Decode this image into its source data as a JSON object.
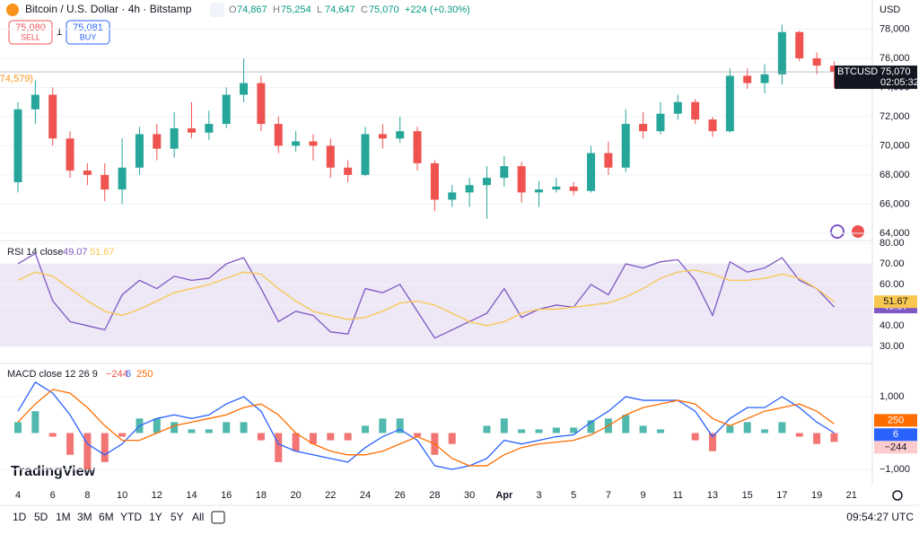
{
  "header": {
    "symbol": "Bitcoin / U.S. Dollar · 4h · Bitstamp",
    "ohlc": [
      {
        "label": "O",
        "value": "74,867"
      },
      {
        "label": "H",
        "value": "75,254"
      },
      {
        "label": "L",
        "value": "74,647"
      },
      {
        "label": "C",
        "value": "75,070"
      }
    ],
    "change": "+224 (+0.30%)"
  },
  "trade": {
    "sell_price": "75,080",
    "sell": "SELL",
    "qty": "1",
    "buy_price": "75,081",
    "buy": "BUY"
  },
  "toolbar": {
    "ranges": [
      "1D",
      "5D",
      "1M",
      "3M",
      "6M",
      "YTD",
      "1Y",
      "5Y",
      "All"
    ],
    "clock": "09:54:27 UTC"
  },
  "logo": "TradingView",
  "chart_data": [
    {
      "type": "candlestick",
      "axis_label": "USD",
      "up_color": "#26a69a",
      "down_color": "#ef5350",
      "categories": [
        "4",
        null,
        "6",
        null,
        "8",
        null,
        "10",
        null,
        "12",
        null,
        "14",
        null,
        "16",
        null,
        "18",
        null,
        "20",
        null,
        "22",
        null,
        "24",
        null,
        "26",
        null,
        "28",
        null,
        "30",
        null,
        "Apr",
        null,
        "3",
        null,
        "5",
        null,
        "7",
        null,
        "9",
        null,
        "11",
        null,
        "13",
        null,
        "15",
        null,
        "17",
        null,
        "19",
        null,
        "21"
      ],
      "open": [
        67500,
        72500,
        73500,
        70500,
        68300,
        68000,
        67000,
        68500,
        70800,
        69800,
        71200,
        70900,
        71500,
        73500,
        74300,
        71500,
        70000,
        70300,
        70000,
        68500,
        68000,
        70800,
        70500,
        71000,
        68800,
        66300,
        66800,
        67300,
        67800,
        68600,
        66800,
        67000,
        67200,
        66900,
        69500,
        68500,
        71500,
        71000,
        72200,
        73000,
        71800,
        71000,
        74800,
        74300,
        74900,
        77800,
        76000,
        75500,
        null
      ],
      "high": [
        73000,
        74500,
        74000,
        71000,
        68800,
        68800,
        70500,
        71300,
        71500,
        72300,
        73000,
        72400,
        74000,
        76000,
        74800,
        72000,
        71000,
        70800,
        70500,
        69000,
        71300,
        71500,
        72000,
        71300,
        69000,
        67300,
        67800,
        68600,
        69300,
        68900,
        67600,
        67800,
        67500,
        70000,
        70300,
        72500,
        72300,
        73000,
        73500,
        73200,
        72000,
        75300,
        75300,
        75600,
        78300,
        77900,
        76400,
        75800,
        null
      ],
      "low": [
        66800,
        71500,
        70000,
        67800,
        67300,
        66200,
        66000,
        68000,
        69000,
        69200,
        70500,
        70400,
        71200,
        73000,
        71000,
        69500,
        69600,
        69000,
        67800,
        67500,
        67900,
        69800,
        70200,
        68300,
        65500,
        65800,
        65800,
        65000,
        67200,
        66100,
        65800,
        66800,
        66600,
        66800,
        68000,
        68200,
        70500,
        70800,
        71800,
        71500,
        70600,
        70900,
        73900,
        73600,
        74200,
        75800,
        74900,
        74000,
        null
      ],
      "close": [
        72500,
        73500,
        70500,
        68300,
        68000,
        67000,
        68500,
        70800,
        69800,
        71200,
        70900,
        71500,
        73500,
        74300,
        71500,
        70000,
        70300,
        70000,
        68500,
        68000,
        70800,
        70500,
        71000,
        68800,
        66300,
        66800,
        67300,
        67800,
        68600,
        66800,
        67000,
        67200,
        66900,
        69500,
        68500,
        71500,
        71000,
        72200,
        73000,
        71800,
        71000,
        74800,
        74300,
        74900,
        77800,
        76000,
        75500,
        75070,
        null
      ],
      "ylim": [
        63500,
        80000
      ],
      "yticks": [
        {
          "value": 64000,
          "label": "64,000"
        },
        {
          "value": 66000,
          "label": "66,000"
        },
        {
          "value": 68000,
          "label": "68,000"
        },
        {
          "value": 70000,
          "label": "70,000"
        },
        {
          "value": 72000,
          "label": "72,000"
        },
        {
          "value": 74000,
          "label": "74,000"
        },
        {
          "value": 76000,
          "label": "76,000"
        },
        {
          "value": 78000,
          "label": "78,000"
        }
      ],
      "last_price": {
        "symbol": "BTCUSD",
        "value": 75070,
        "value_label": "75,070",
        "countdown": "02:05:32"
      },
      "annotation": "(74,579)"
    },
    {
      "type": "line",
      "title": "RSI 14 close",
      "ylim": [
        21.7,
        81.3
      ],
      "band": [
        30,
        70
      ],
      "band_color": "#ede7f6",
      "yticks": [
        {
          "value": 30,
          "label": "30.00"
        },
        {
          "value": 40,
          "label": "40.00"
        },
        {
          "value": 50,
          "label": "50.00"
        },
        {
          "value": 60,
          "label": "60.00"
        },
        {
          "value": 70,
          "label": "70.00"
        },
        {
          "value": 80,
          "label": "80.00"
        }
      ],
      "series": [
        {
          "color": "#7e57c2",
          "last_label": "49.07",
          "values": [
            70,
            75,
            52,
            42,
            40,
            38,
            55,
            62,
            58,
            64,
            62,
            63,
            70,
            73,
            58,
            42,
            47,
            45,
            37,
            36,
            58,
            56,
            60,
            47,
            34,
            38,
            42,
            46,
            58,
            44,
            48,
            50,
            49,
            60,
            55,
            70,
            68,
            71,
            72,
            62,
            45,
            71,
            66,
            68,
            73,
            62,
            58,
            49.07
          ]
        },
        {
          "color": "#f9c74f",
          "last_label": "51.67",
          "values": [
            62,
            66,
            64,
            58,
            52,
            47,
            45,
            48,
            52,
            56,
            58,
            60,
            63,
            66,
            65,
            58,
            52,
            47,
            45,
            43,
            44,
            47,
            51,
            52,
            50,
            46,
            42,
            40,
            42,
            46,
            48,
            48,
            49,
            50,
            51,
            54,
            58,
            63,
            66,
            67,
            65,
            62,
            62,
            63,
            65,
            63,
            58,
            51.67
          ]
        }
      ]
    },
    {
      "type": "macd",
      "title": "MACD close 12 26 9",
      "ylim": [
        -1420,
        1914
      ],
      "yticks": [
        {
          "value": 1000,
          "label": "1,000"
        },
        {
          "value": -1000,
          "label": "−1,000"
        }
      ],
      "histogram": {
        "pos_color": "#26a69a",
        "neg_color": "#ef5350",
        "last_label": "−244",
        "values": [
          300,
          600,
          -100,
          -600,
          -1000,
          -800,
          -100,
          400,
          400,
          300,
          100,
          100,
          300,
          300,
          -200,
          -800,
          -500,
          -300,
          -200,
          -200,
          200,
          400,
          400,
          -100,
          -600,
          -300,
          0,
          200,
          400,
          100,
          100,
          150,
          150,
          350,
          400,
          500,
          200,
          100,
          0,
          -200,
          -500,
          200,
          300,
          100,
          300,
          -100,
          -300,
          -244
        ]
      },
      "series": [
        {
          "color": "#2962ff",
          "last_label": "6",
          "values": [
            600,
            1400,
            1100,
            500,
            -300,
            -600,
            -300,
            200,
            400,
            500,
            400,
            500,
            800,
            1000,
            600,
            -300,
            -500,
            -600,
            -700,
            -800,
            -400,
            -100,
            100,
            -200,
            -900,
            -1000,
            -900,
            -700,
            -200,
            -300,
            -200,
            -100,
            -50,
            300,
            600,
            1000,
            900,
            900,
            900,
            600,
            -100,
            400,
            700,
            700,
            1000,
            700,
            300,
            6
          ]
        },
        {
          "color": "#ff6d00",
          "last_label": "250",
          "values": [
            300,
            800,
            1200,
            1100,
            700,
            200,
            -200,
            -200,
            0,
            200,
            300,
            400,
            500,
            700,
            800,
            500,
            0,
            -300,
            -500,
            -600,
            -600,
            -500,
            -300,
            -100,
            -300,
            -700,
            -900,
            -900,
            -600,
            -400,
            -300,
            -250,
            -200,
            -50,
            200,
            500,
            700,
            800,
            900,
            800,
            400,
            200,
            400,
            600,
            700,
            800,
            600,
            250
          ]
        }
      ]
    }
  ]
}
